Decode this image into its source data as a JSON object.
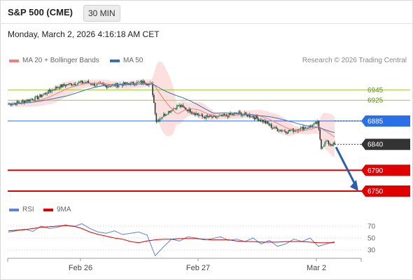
{
  "header": {
    "title": "S&P 500 (CME)",
    "timeframe": "30 MIN",
    "timestamp": "Monday, March 2, 2026 4:16:18 AM CET",
    "copyright": "Research © 2026 Trading Central"
  },
  "legend": {
    "ma20_label": "MA 20 + Bollinger Bands",
    "ma50_label": "MA 50",
    "rsi_label": "RSI",
    "ma9_label": "9MA"
  },
  "colors": {
    "up": "#2e8b57",
    "down": "#333333",
    "ma20": "#f08080",
    "ma50": "#3a6fb5",
    "band": "#fbd5d5",
    "resistance": "#9acd32",
    "support": "#e00000",
    "pivot": "#2a6ee8",
    "rsi": "#5b83d6",
    "rsi_ma": "#e00000",
    "arrow": "#2c5fa8"
  },
  "chart_data": [
    {
      "type": "candlestick",
      "x_labels": [
        "Feb 26",
        "Feb 27",
        "Mar 2"
      ],
      "y_range": [
        6727,
        6990
      ],
      "levels": [
        {
          "label": "6945",
          "value": 6945,
          "kind": "resistance"
        },
        {
          "label": "6925",
          "value": 6925,
          "kind": "resistance"
        },
        {
          "label": "6885",
          "value": 6885,
          "kind": "pivot"
        },
        {
          "label": "6840",
          "value": 6840,
          "kind": "last"
        },
        {
          "label": "6790",
          "value": 6790,
          "kind": "support"
        },
        {
          "label": "6750",
          "value": 6750,
          "kind": "support"
        }
      ],
      "price_path": [
        [
          0,
          6918
        ],
        [
          8,
          6920
        ],
        [
          16,
          6925
        ],
        [
          24,
          6930
        ],
        [
          32,
          6940
        ],
        [
          40,
          6950
        ],
        [
          48,
          6955
        ],
        [
          56,
          6958
        ],
        [
          64,
          6960
        ],
        [
          72,
          6955
        ],
        [
          80,
          6953
        ],
        [
          88,
          6954
        ],
        [
          96,
          6956
        ],
        [
          104,
          6958
        ],
        [
          112,
          6960
        ],
        [
          118,
          6955
        ],
        [
          122,
          6885
        ],
        [
          130,
          6900
        ],
        [
          140,
          6915
        ],
        [
          150,
          6905
        ],
        [
          160,
          6893
        ],
        [
          170,
          6892
        ],
        [
          180,
          6895
        ],
        [
          190,
          6900
        ],
        [
          200,
          6895
        ],
        [
          210,
          6885
        ],
        [
          220,
          6870
        ],
        [
          230,
          6865
        ],
        [
          240,
          6870
        ],
        [
          250,
          6875
        ],
        [
          255,
          6882
        ],
        [
          258,
          6835
        ],
        [
          262,
          6845
        ],
        [
          266,
          6840
        ]
      ],
      "projection": {
        "from": 6840,
        "to": 6750
      }
    },
    {
      "type": "line",
      "title": "RSI",
      "y_ticks": [
        70,
        50,
        30
      ],
      "y_range": [
        0,
        100
      ],
      "series": [
        {
          "name": "RSI",
          "values": [
            60,
            62,
            65,
            61,
            70,
            66,
            68,
            72,
            69,
            74,
            66,
            60,
            58,
            62,
            56,
            58,
            60,
            55,
            20,
            35,
            48,
            45,
            52,
            50,
            47,
            49,
            52,
            46,
            48,
            44,
            50,
            40,
            46,
            36,
            40,
            48,
            44,
            50,
            36,
            40,
            44
          ]
        },
        {
          "name": "9MA",
          "values": [
            62,
            63,
            64,
            66,
            68,
            69,
            70,
            71,
            70,
            66,
            60,
            56,
            53,
            50,
            48,
            44,
            42,
            45,
            47,
            48,
            48,
            49,
            49,
            49,
            48,
            47,
            47,
            47,
            45,
            44,
            44,
            43,
            43,
            43,
            44,
            44,
            44,
            43,
            42,
            42,
            42
          ]
        }
      ]
    }
  ]
}
